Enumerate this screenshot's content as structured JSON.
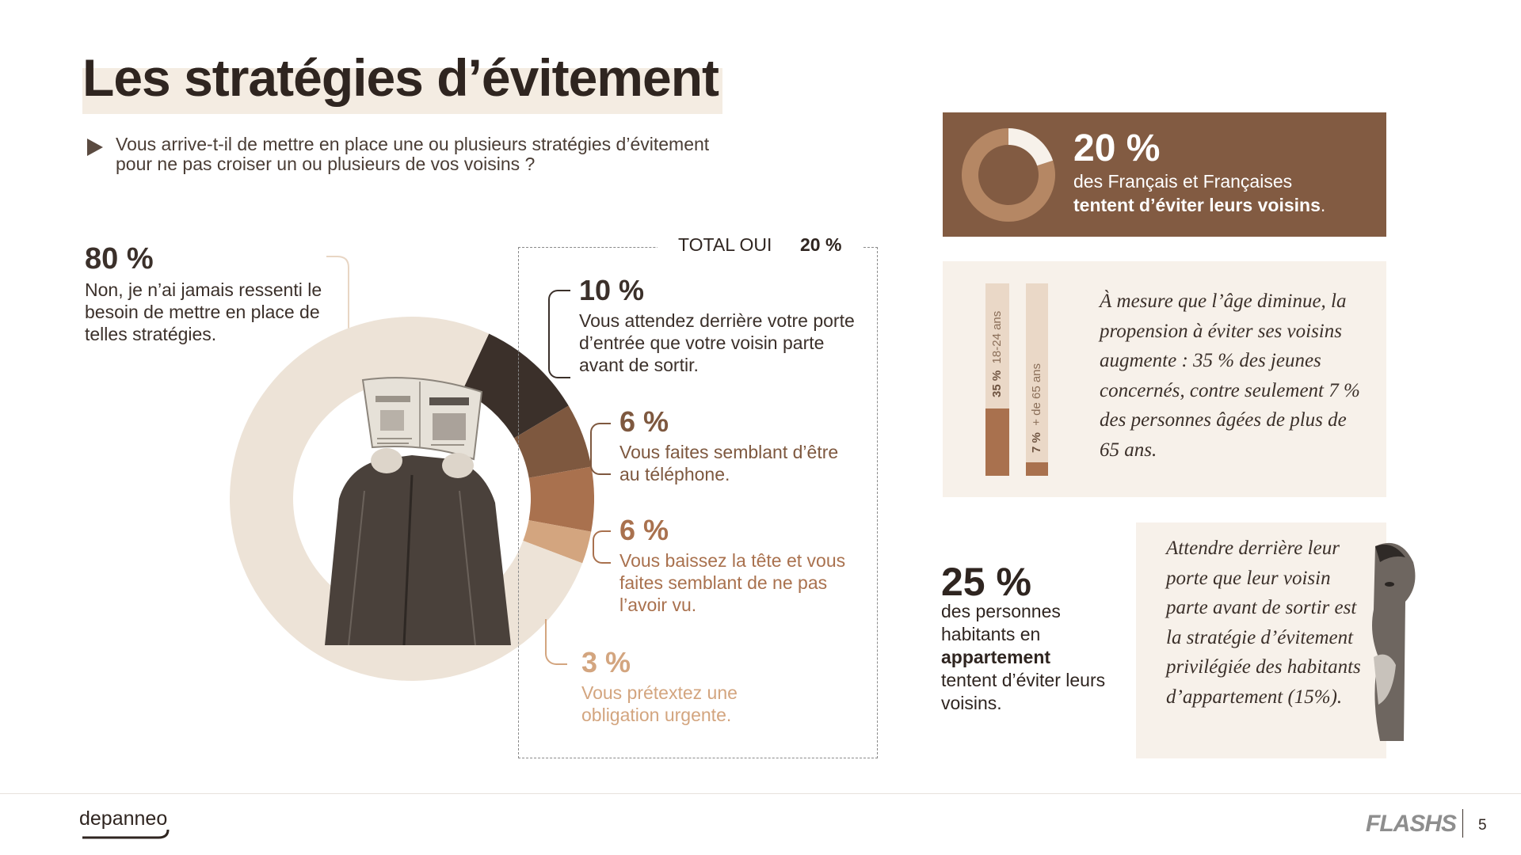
{
  "title": "Les stratégies d’évitement",
  "question": "Vous arrive-t-il de mettre en place une ou plusieurs stratégies d’évitement pour ne pas croiser un ou plusieurs de vos voisins ?",
  "no_block": {
    "pct": "80 %",
    "text": "Non, je n’ai jamais ressenti le besoin de mettre en place de telles stratégies."
  },
  "total": {
    "label": "TOTAL OUI",
    "value": "20 %"
  },
  "segments": [
    {
      "pct": "10 %",
      "text": "Vous attendez derrière votre porte d’entrée que votre voisin parte avant de sortir.",
      "color": "#3b302a"
    },
    {
      "pct": "6 %",
      "text": "Vous faites semblant d’être au téléphone.",
      "color": "#7e583f"
    },
    {
      "pct": "6 %",
      "text": "Vous baissez la tête et vous faites semblant de ne pas l’avoir vu.",
      "color": "#a9714e"
    },
    {
      "pct": "3 %",
      "text": "Vous prétextez une obligation urgente.",
      "color": "#d3a57f"
    }
  ],
  "chart_data": {
    "type": "pie",
    "categories": [
      "Non, je n’ai jamais ressenti le besoin de mettre en place de telles stratégies.",
      "Vous attendez derrière votre porte d’entrée que votre voisin parte avant de sortir.",
      "Vous faites semblant d’être au téléphone.",
      "Vous baissez la tête et vous faites semblant de ne pas l’avoir vu.",
      "Vous prétextez une obligation urgente."
    ],
    "values": [
      80,
      10,
      6,
      6,
      3
    ],
    "colors": [
      "#ede3d7",
      "#3b302a",
      "#7e583f",
      "#a9714e",
      "#d3a57f"
    ]
  },
  "banner": {
    "pct": "20 %",
    "value": 20,
    "line1": "des Français et Françaises",
    "line2": "tentent d’éviter leurs voisins",
    "line2_end": "."
  },
  "age": {
    "bars": [
      {
        "pct": "35 %",
        "label": "18-24 ans",
        "value": 35
      },
      {
        "pct": "7 %",
        "label": "+ de 65 ans",
        "value": 7
      }
    ],
    "quote": "À mesure que l’âge diminue, la propension à éviter ses voisins augmente : 35 % des jeunes concernés, contre seulement 7 % des personnes âgées de plus de 65 ans."
  },
  "apartment": {
    "pct": "25 %",
    "text_before": "des personnes habitants en",
    "text_bold": "appartement",
    "text_after": "tentent d’éviter leurs voisins."
  },
  "quote2": "Attendre derrière leur porte que leur voisin parte avant de sortir est la stratégie d’évitement privilégiée des habitants d’appartement (15%).",
  "footer": {
    "logo": "depanneo",
    "brand": "FLASHS",
    "page": "5"
  }
}
